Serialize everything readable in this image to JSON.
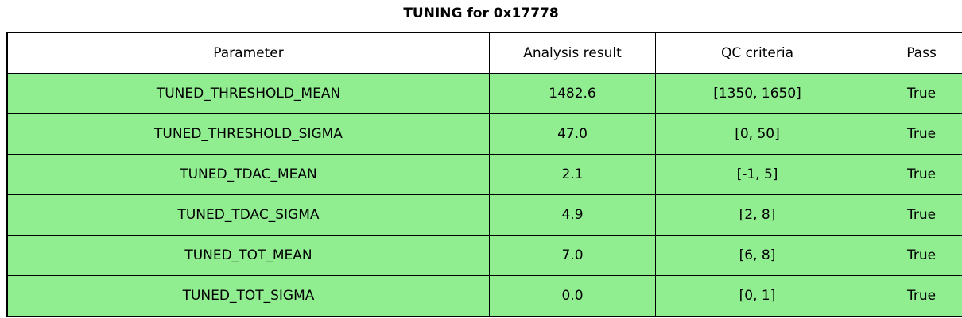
{
  "chart_data": {
    "type": "table",
    "title": "TUNING for 0x17778",
    "columns": [
      "Parameter",
      "Analysis result",
      "QC criteria",
      "Pass"
    ],
    "rows": [
      [
        "TUNED_THRESHOLD_MEAN",
        "1482.6",
        "[1350, 1650]",
        "True"
      ],
      [
        "TUNED_THRESHOLD_SIGMA",
        "47.0",
        "[0, 50]",
        "True"
      ],
      [
        "TUNED_TDAC_MEAN",
        "2.1",
        "[-1, 5]",
        "True"
      ],
      [
        "TUNED_TDAC_SIGMA",
        "4.9",
        "[2, 8]",
        "True"
      ],
      [
        "TUNED_TOT_MEAN",
        "7.0",
        "[6, 8]",
        "True"
      ],
      [
        "TUNED_TOT_SIGMA",
        "0.0",
        "[0, 1]",
        "True"
      ]
    ],
    "colors": {
      "row_background": "#90EE90",
      "header_background": "#FFFFFF",
      "border": "#000000",
      "text": "#000000"
    },
    "layout": {
      "legend": "none",
      "grid": "table-borders",
      "header_row": true
    }
  }
}
